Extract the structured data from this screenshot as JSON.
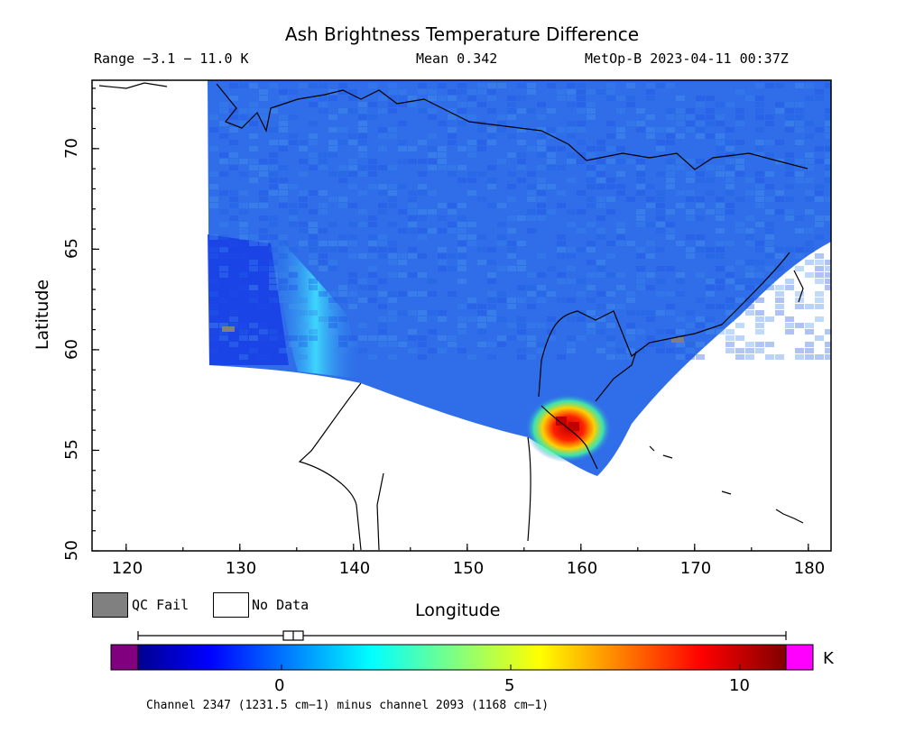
{
  "header": {
    "title": "Ash Brightness Temperature Difference",
    "range": "Range −3.1 − 11.0 K",
    "mean": "Mean 0.342",
    "satellite_time": "MetOp-B 2023-04-11 00:37Z"
  },
  "axes": {
    "ylabel": "Latitude",
    "xlabel": "Longitude",
    "x_ticks": [
      "120",
      "130",
      "140",
      "150",
      "160",
      "170",
      "180"
    ],
    "y_ticks": [
      "70",
      "65",
      "60",
      "55",
      "50"
    ],
    "x_range": [
      117,
      182
    ],
    "y_range": [
      50,
      73.4
    ]
  },
  "legend": {
    "qc_fail": "QC Fail",
    "no_data": "No Data",
    "qc_fail_color": "#808080",
    "no_data_color": "#ffffff"
  },
  "colorbar": {
    "ticks": [
      "0",
      "5",
      "10"
    ],
    "unit": "K",
    "under_color": "#800080",
    "over_color": "#ff00ff",
    "range": [
      -3.1,
      11.0
    ]
  },
  "footnote": "Channel 2347 (1231.5 cm−1) minus channel 2093 (1168 cm−1)",
  "map": {
    "background_color": "#2f6ee8",
    "ash_signal_location": "Kamchatka, ~159E 56N",
    "max_color": "#c00000"
  }
}
